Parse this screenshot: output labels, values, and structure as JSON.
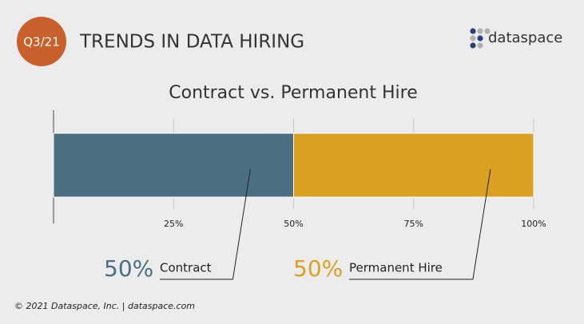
{
  "header": {
    "badge": "Q3/21",
    "title": "TRENDS IN DATA HIRING",
    "logo": "dataspace"
  },
  "chart_data": {
    "type": "stacked-bar",
    "title": "Contract vs. Permanent Hire",
    "categories": [
      null
    ],
    "series": [
      {
        "name": "Contract",
        "color": "#4b6f80",
        "values": [
          50
        ],
        "value_labels": [
          "50%"
        ]
      },
      {
        "name": "Permanent Hire",
        "color": "#dba022",
        "values": [
          50
        ],
        "value_labels": [
          "50%"
        ]
      }
    ],
    "xlim": [
      0,
      100
    ],
    "xticks": [
      {
        "value": 25,
        "label": "25%"
      },
      {
        "value": 50,
        "label": "50%"
      },
      {
        "value": 75,
        "label": "75%"
      },
      {
        "value": 100,
        "label": "100%"
      }
    ],
    "grid": true
  },
  "footer": "© 2021 Dataspace, Inc. |  dataspace.com"
}
